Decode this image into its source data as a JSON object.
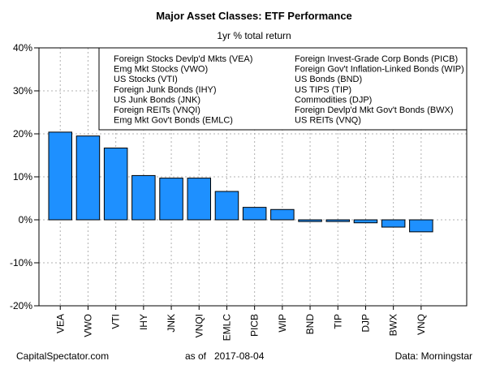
{
  "chart_data": {
    "type": "bar",
    "title": "Major Asset Classes: ETF Performance",
    "subtitle": "1yr % total return",
    "ylim": [
      -20,
      40
    ],
    "yticks": [
      -20,
      -10,
      0,
      10,
      20,
      30,
      40
    ],
    "ytick_labels": [
      "-20%",
      "-10%",
      "0%",
      "10%",
      "20%",
      "30%",
      "40%"
    ],
    "grid": true,
    "bar_color": "#1e90ff",
    "legend_position": "top-right",
    "categories": [
      "VEA",
      "VWO",
      "VTI",
      "IHY",
      "JNK",
      "VNQI",
      "EMLC",
      "PICB",
      "WIP",
      "BND",
      "TIP",
      "DJP",
      "BWX",
      "VNQ"
    ],
    "values": [
      20.4,
      19.5,
      16.7,
      10.3,
      9.7,
      9.7,
      6.6,
      2.9,
      2.4,
      -0.4,
      -0.4,
      -0.7,
      -1.7,
      -2.8
    ],
    "legend": {
      "left": [
        "Foreign Stocks Devlp'd Mkts (VEA)",
        "Emg Mkt Stocks (VWO)",
        "US Stocks (VTI)",
        "Foreign Junk Bonds (IHY)",
        "US Junk Bonds (JNK)",
        "Foreign REITs (VNQI)",
        "Emg Mkt Gov't Bonds (EMLC)"
      ],
      "right": [
        "Foreign Invest-Grade Corp Bonds (PICB)",
        "Foreign Gov't Inflation-Linked Bonds (WIP)",
        "US Bonds (BND)",
        "US TIPS (TIP)",
        "Commodities (DJP)",
        "Foreign Devlp'd Mkt Gov't Bonds (BWX)",
        "US REITs (VNQ)"
      ]
    }
  },
  "footer": {
    "source_site": "CapitalSpectator.com",
    "as_of_label": "as of",
    "as_of_date": "2017-08-04",
    "data_credit": "Data: Morningstar"
  }
}
